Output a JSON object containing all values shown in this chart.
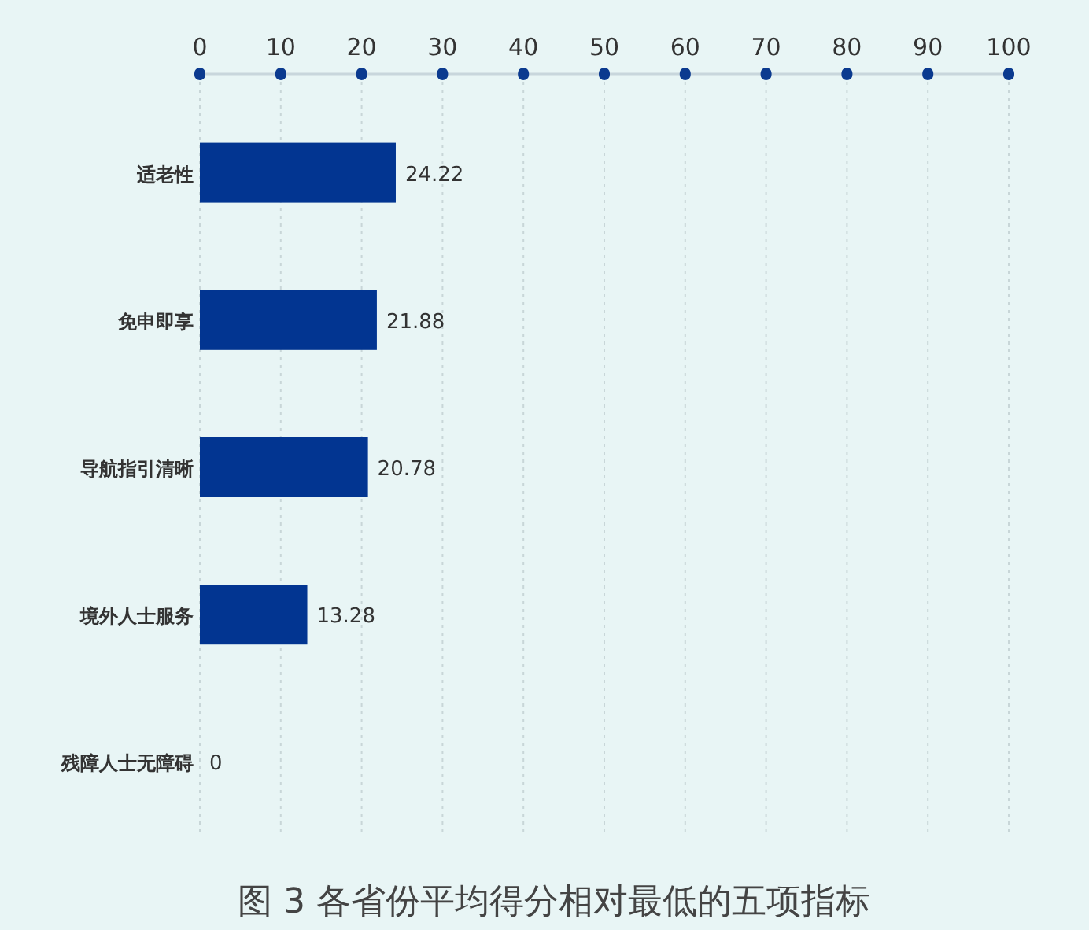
{
  "chart_data": {
    "type": "bar",
    "orientation": "horizontal",
    "title": "图 3  各省份平均得分相对最低的五项指标",
    "categories": [
      "适老性",
      "免申即享",
      "导航指引清晰",
      "境外人士服务",
      "残障人士无障碍"
    ],
    "values": [
      24.22,
      21.88,
      20.78,
      13.28,
      0
    ],
    "color": "#023591",
    "xlim": [
      0,
      100
    ],
    "xticks": [
      0,
      10,
      20,
      30,
      40,
      50,
      60,
      70,
      80,
      90,
      100
    ],
    "grid": "x",
    "data_labels": true
  }
}
